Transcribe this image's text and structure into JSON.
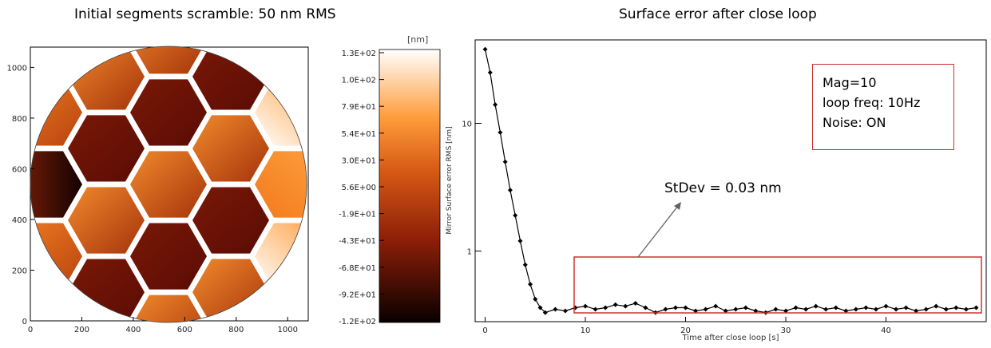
{
  "left_title": "Initial segments scramble: 50 nm RMS",
  "right_title": "Surface error after close loop",
  "info_box": {
    "mag": "Mag=10",
    "freq": "loop freq: 10Hz",
    "noise": "Noise: ON"
  },
  "annotation": "StDev = 0.03 nm",
  "colors": {
    "box": "#d03030",
    "arrow": "#606060",
    "line": "#000000"
  },
  "chart_data": [
    {
      "type": "heatmap",
      "title": "Initial segments scramble: 50 nm RMS",
      "x_ticks": [
        "0",
        "200",
        "400",
        "600",
        "800",
        "1000"
      ],
      "y_ticks": [
        "0",
        "200",
        "400",
        "600",
        "800",
        "1000"
      ],
      "xlim": [
        0,
        1080
      ],
      "ylim": [
        0,
        1080
      ],
      "colorbar": {
        "unit": "[nm]",
        "tick_labels": [
          "1.3E+02",
          "1.0E+02",
          "7.9E+01",
          "5.4E+01",
          "3.0E+01",
          "5.6E+00",
          "-1.9E+01",
          "-4.3E+01",
          "-6.8E+01",
          "-9.2E+01",
          "-1.2E+02"
        ],
        "range": [
          -120,
          130
        ],
        "label": "Mirror Surface error RMS [nm]"
      }
    },
    {
      "type": "line",
      "title": "Surface error after close loop",
      "xlabel": "Time after close loop [s]",
      "ylabel": "Mirror Surface error RMS [nm]",
      "x_ticks": [
        "0",
        "10",
        "20",
        "30",
        "40"
      ],
      "y_ticks": [
        "1",
        "10"
      ],
      "xlim": [
        -1,
        50
      ],
      "ylim": [
        0.28,
        45
      ],
      "yscale": "log",
      "series": [
        {
          "x": [
            0,
            0.5,
            1,
            1.5,
            2,
            2.5,
            3,
            3.5,
            4,
            4.5,
            5,
            5.5,
            6,
            7,
            8,
            9,
            10,
            11,
            12,
            13,
            14,
            15,
            16,
            17,
            18,
            19,
            20,
            21,
            22,
            23,
            24,
            25,
            26,
            27,
            28,
            29,
            30,
            31,
            32,
            33,
            34,
            35,
            36,
            37,
            38,
            39,
            40,
            41,
            42,
            43,
            44,
            45,
            46,
            47,
            48,
            49
          ],
          "y": [
            38,
            25,
            14,
            8.5,
            5.0,
            3.0,
            1.9,
            1.2,
            0.78,
            0.55,
            0.42,
            0.36,
            0.33,
            0.35,
            0.34,
            0.36,
            0.37,
            0.35,
            0.36,
            0.38,
            0.37,
            0.39,
            0.36,
            0.33,
            0.35,
            0.36,
            0.36,
            0.34,
            0.35,
            0.37,
            0.34,
            0.35,
            0.36,
            0.34,
            0.33,
            0.35,
            0.34,
            0.36,
            0.35,
            0.37,
            0.35,
            0.36,
            0.34,
            0.35,
            0.36,
            0.35,
            0.37,
            0.35,
            0.36,
            0.34,
            0.35,
            0.37,
            0.35,
            0.36,
            0.35,
            0.36
          ]
        }
      ]
    }
  ]
}
